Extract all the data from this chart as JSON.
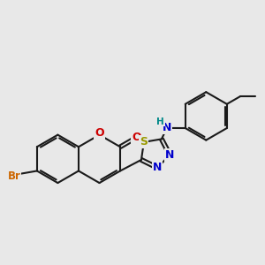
{
  "bg_color": "#e8e8e8",
  "bond_color": "#1a1a1a",
  "bond_width": 1.5,
  "atom_colors": {
    "Br": "#cc6600",
    "O": "#cc0000",
    "S": "#999900",
    "N": "#0000cc",
    "H": "#008888"
  },
  "font_size": 9,
  "font_size_h": 7.5,
  "font_size_br": 8.5
}
